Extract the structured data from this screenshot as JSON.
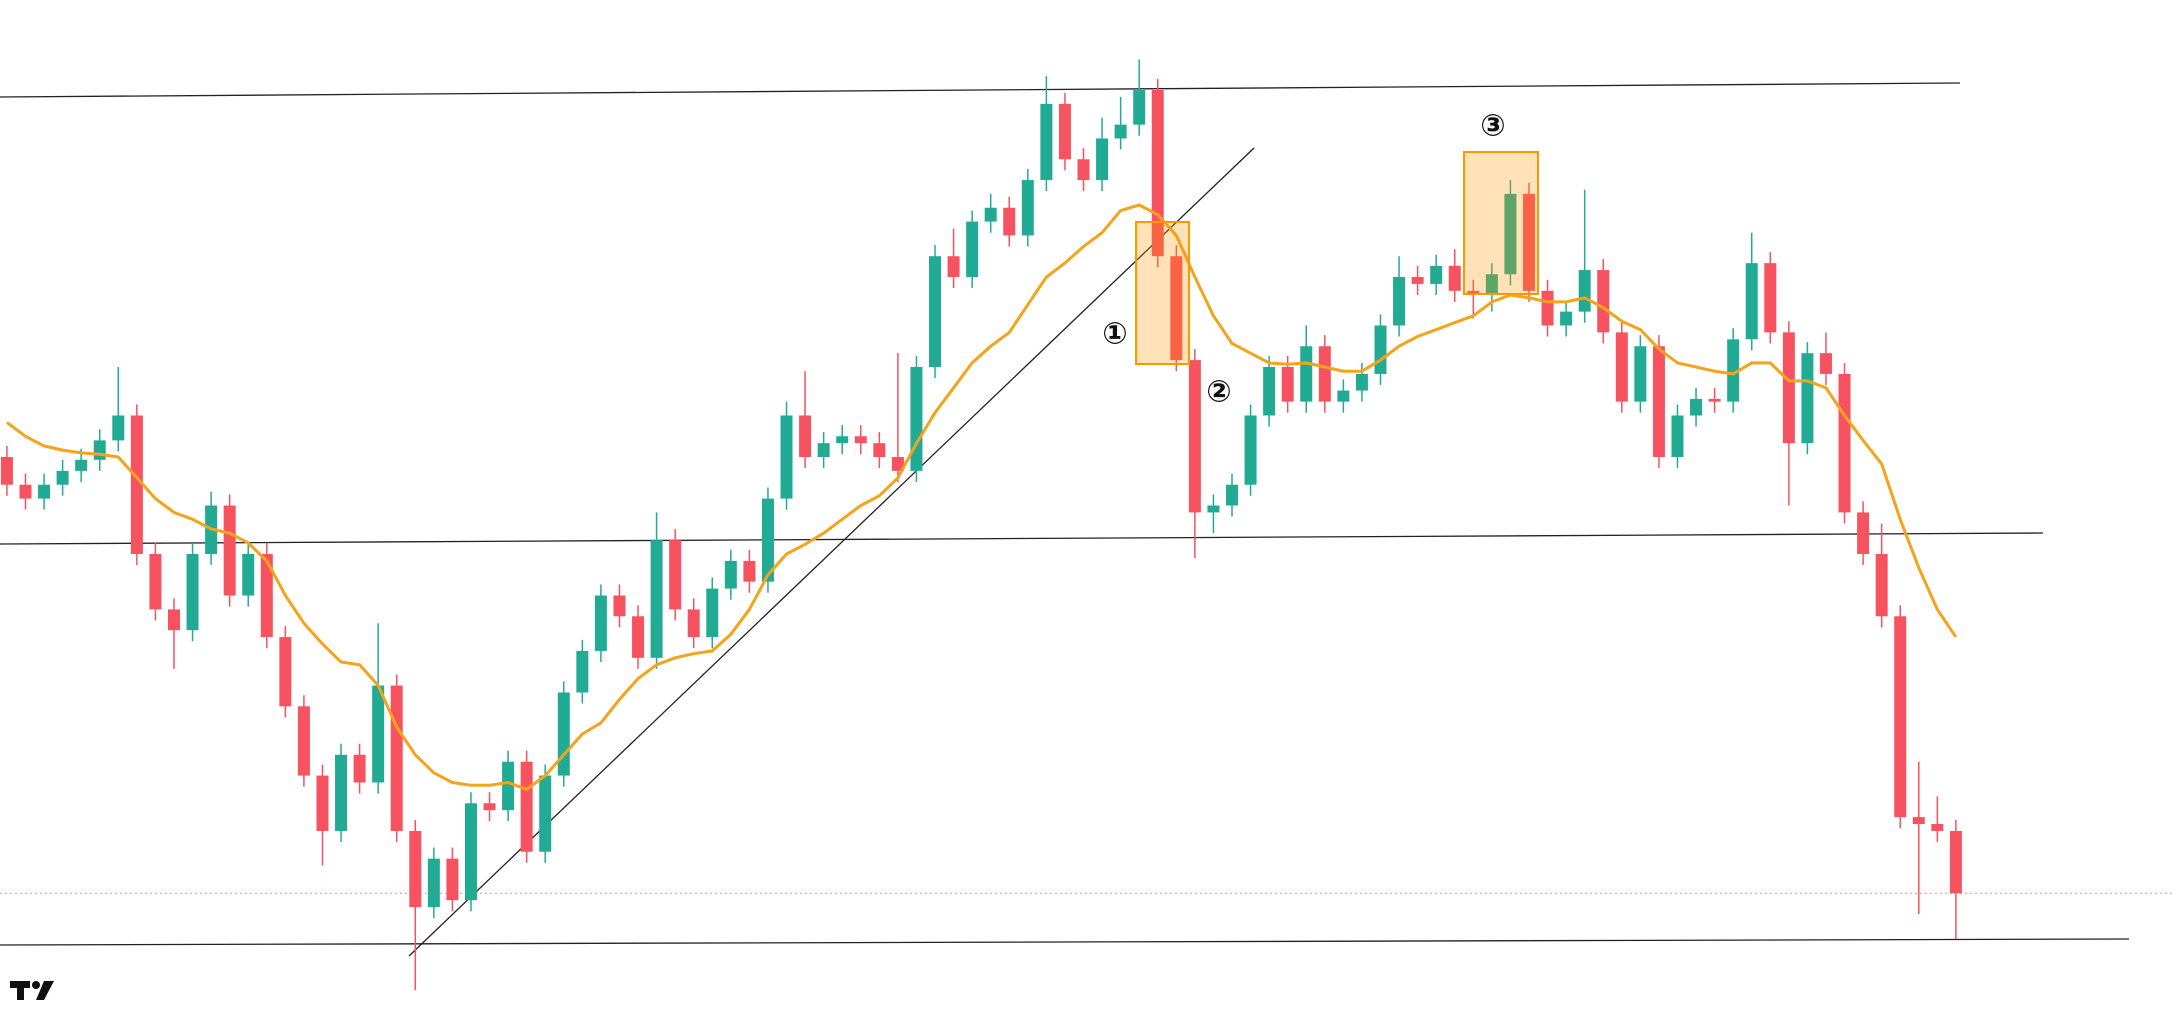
{
  "chart_data": {
    "type": "candlestick",
    "ylim": [
      0,
      730
    ],
    "up_color": "#22ab94",
    "down_color": "#f7525f",
    "ma_color": "#f5a31a",
    "annotations": [
      "①",
      "②",
      "③"
    ],
    "ohlc": [
      [
        400,
        408,
        372,
        380
      ],
      [
        380,
        388,
        362,
        370
      ],
      [
        370,
        388,
        362,
        380
      ],
      [
        380,
        398,
        372,
        390
      ],
      [
        390,
        406,
        382,
        398
      ],
      [
        398,
        420,
        390,
        412
      ],
      [
        412,
        465,
        404,
        430
      ],
      [
        430,
        438,
        322,
        330
      ],
      [
        330,
        338,
        282,
        290
      ],
      [
        290,
        298,
        247,
        275
      ],
      [
        275,
        338,
        267,
        330
      ],
      [
        330,
        375,
        322,
        365
      ],
      [
        365,
        373,
        292,
        300
      ],
      [
        300,
        338,
        292,
        330
      ],
      [
        330,
        338,
        262,
        270
      ],
      [
        270,
        278,
        212,
        220
      ],
      [
        220,
        228,
        162,
        170
      ],
      [
        170,
        178,
        105,
        130
      ],
      [
        130,
        193,
        122,
        185
      ],
      [
        185,
        193,
        157,
        165
      ],
      [
        165,
        280,
        157,
        235
      ],
      [
        235,
        243,
        122,
        130
      ],
      [
        130,
        138,
        15,
        75
      ],
      [
        75,
        118,
        67,
        110
      ],
      [
        110,
        118,
        72,
        80
      ],
      [
        80,
        158,
        72,
        150
      ],
      [
        150,
        158,
        137,
        145
      ],
      [
        145,
        188,
        137,
        180
      ],
      [
        180,
        188,
        107,
        115
      ],
      [
        115,
        178,
        107,
        170
      ],
      [
        170,
        238,
        162,
        230
      ],
      [
        230,
        268,
        222,
        260
      ],
      [
        260,
        308,
        252,
        300
      ],
      [
        300,
        308,
        277,
        285
      ],
      [
        285,
        293,
        247,
        255
      ],
      [
        255,
        360,
        247,
        340
      ],
      [
        340,
        348,
        282,
        290
      ],
      [
        290,
        298,
        262,
        270
      ],
      [
        270,
        313,
        262,
        305
      ],
      [
        305,
        333,
        297,
        325
      ],
      [
        325,
        333,
        302,
        310
      ],
      [
        310,
        378,
        302,
        370
      ],
      [
        370,
        440,
        362,
        430
      ],
      [
        430,
        462,
        392,
        400
      ],
      [
        400,
        418,
        392,
        410
      ],
      [
        410,
        423,
        402,
        415
      ],
      [
        415,
        423,
        402,
        410
      ],
      [
        410,
        418,
        392,
        400
      ],
      [
        400,
        475,
        382,
        390
      ],
      [
        390,
        473,
        382,
        465
      ],
      [
        465,
        553,
        457,
        545
      ],
      [
        545,
        565,
        522,
        530
      ],
      [
        530,
        578,
        522,
        570
      ],
      [
        570,
        590,
        562,
        580
      ],
      [
        580,
        588,
        552,
        560
      ],
      [
        560,
        608,
        552,
        600
      ],
      [
        600,
        675,
        592,
        655
      ],
      [
        655,
        663,
        607,
        615
      ],
      [
        615,
        623,
        592,
        600
      ],
      [
        600,
        645,
        592,
        630
      ],
      [
        630,
        660,
        622,
        640
      ],
      [
        640,
        687,
        632,
        665
      ],
      [
        665,
        673,
        537,
        545
      ],
      [
        545,
        553,
        462,
        470
      ],
      [
        470,
        478,
        327,
        360
      ],
      [
        360,
        373,
        345,
        365
      ],
      [
        365,
        388,
        357,
        380
      ],
      [
        380,
        438,
        372,
        430
      ],
      [
        430,
        473,
        422,
        465
      ],
      [
        465,
        473,
        432,
        440
      ],
      [
        440,
        495,
        432,
        480
      ],
      [
        480,
        488,
        432,
        440
      ],
      [
        440,
        456,
        432,
        448
      ],
      [
        448,
        468,
        440,
        460
      ],
      [
        460,
        503,
        452,
        495
      ],
      [
        495,
        545,
        487,
        530
      ],
      [
        530,
        538,
        517,
        525
      ],
      [
        525,
        546,
        517,
        538
      ],
      [
        538,
        550,
        512,
        520
      ],
      [
        520,
        528,
        500,
        518
      ],
      [
        518,
        540,
        505,
        532
      ],
      [
        532,
        600,
        524,
        590
      ],
      [
        590,
        598,
        512,
        520
      ],
      [
        520,
        528,
        487,
        495
      ],
      [
        495,
        513,
        487,
        505
      ],
      [
        505,
        593,
        497,
        535
      ],
      [
        535,
        543,
        482,
        490
      ],
      [
        490,
        498,
        432,
        440
      ],
      [
        440,
        488,
        432,
        480
      ],
      [
        480,
        488,
        392,
        400
      ],
      [
        400,
        438,
        392,
        430
      ],
      [
        430,
        450,
        422,
        442
      ],
      [
        442,
        450,
        432,
        440
      ],
      [
        440,
        493,
        432,
        485
      ],
      [
        485,
        562,
        477,
        540
      ],
      [
        540,
        548,
        482,
        490
      ],
      [
        490,
        498,
        365,
        410
      ],
      [
        410,
        483,
        402,
        475
      ],
      [
        475,
        490,
        452,
        460
      ],
      [
        460,
        468,
        352,
        360
      ],
      [
        360,
        368,
        322,
        330
      ],
      [
        330,
        352,
        277,
        285
      ],
      [
        285,
        293,
        132,
        140
      ],
      [
        140,
        180,
        70,
        135
      ],
      [
        135,
        155,
        122,
        130
      ],
      [
        130,
        138,
        52,
        85
      ]
    ],
    "ma": [
      425,
      415,
      408,
      405,
      403,
      402,
      400,
      385,
      370,
      360,
      355,
      348,
      345,
      338,
      325,
      300,
      280,
      265,
      252,
      250,
      235,
      205,
      185,
      172,
      165,
      163,
      163,
      165,
      160,
      170,
      185,
      200,
      208,
      225,
      240,
      250,
      255,
      258,
      260,
      272,
      290,
      315,
      330,
      337,
      345,
      355,
      365,
      372,
      385,
      410,
      432,
      450,
      468,
      480,
      490,
      510,
      530,
      540,
      552,
      562,
      578,
      582,
      575,
      560,
      530,
      502,
      482,
      475,
      468,
      467,
      468,
      465,
      462,
      462,
      470,
      480,
      487,
      492,
      497,
      502,
      512,
      517,
      515,
      512,
      512,
      515,
      508,
      498,
      492,
      478,
      468,
      465,
      462,
      460,
      468,
      468,
      455,
      455,
      450,
      430,
      412,
      395,
      355,
      320,
      290,
      270
    ]
  }
}
